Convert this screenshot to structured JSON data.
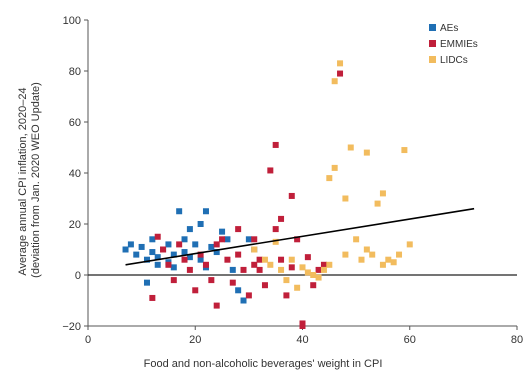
{
  "chart_data": {
    "type": "scatter",
    "title": "",
    "xlabel": "Food and non-alcoholic beverages' weight in CPI",
    "ylabel_lines": [
      "Average annual CPI inflation, 2020–24",
      "(deviation from Jan. 2020 WEO Update)"
    ],
    "xlim": [
      0,
      80
    ],
    "ylim": [
      -20,
      100
    ],
    "x_ticks": [
      0,
      20,
      40,
      60,
      80
    ],
    "y_ticks": [
      -20,
      0,
      20,
      40,
      60,
      80,
      100
    ],
    "grid": false,
    "legend_position": "top-right",
    "series": [
      {
        "name": "AEs",
        "color": "#1f6fb4",
        "points": [
          [
            7,
            10
          ],
          [
            8,
            12
          ],
          [
            9,
            8
          ],
          [
            10,
            11
          ],
          [
            11,
            6
          ],
          [
            11,
            -3
          ],
          [
            12,
            14
          ],
          [
            12,
            9
          ],
          [
            13,
            4
          ],
          [
            13,
            7
          ],
          [
            14,
            10
          ],
          [
            15,
            12
          ],
          [
            15,
            5
          ],
          [
            16,
            8
          ],
          [
            16,
            3
          ],
          [
            17,
            25
          ],
          [
            18,
            14
          ],
          [
            18,
            9
          ],
          [
            19,
            18
          ],
          [
            19,
            7
          ],
          [
            20,
            12
          ],
          [
            21,
            6
          ],
          [
            21,
            20
          ],
          [
            22,
            25
          ],
          [
            22,
            3
          ],
          [
            23,
            11
          ],
          [
            24,
            9
          ],
          [
            25,
            17
          ],
          [
            26,
            14
          ],
          [
            27,
            2
          ],
          [
            28,
            -6
          ],
          [
            29,
            -10
          ],
          [
            30,
            14
          ],
          [
            31,
            10
          ]
        ]
      },
      {
        "name": "EMMIEs",
        "color": "#c01f3a",
        "points": [
          [
            12,
            -9
          ],
          [
            13,
            15
          ],
          [
            14,
            10
          ],
          [
            15,
            4
          ],
          [
            16,
            -2
          ],
          [
            17,
            12
          ],
          [
            18,
            6
          ],
          [
            19,
            2
          ],
          [
            20,
            -6
          ],
          [
            21,
            8
          ],
          [
            22,
            4
          ],
          [
            23,
            -2
          ],
          [
            24,
            12
          ],
          [
            24,
            -12
          ],
          [
            25,
            14
          ],
          [
            26,
            6
          ],
          [
            27,
            -3
          ],
          [
            28,
            18
          ],
          [
            28,
            8
          ],
          [
            29,
            2
          ],
          [
            30,
            -8
          ],
          [
            31,
            14
          ],
          [
            31,
            4
          ],
          [
            32,
            2
          ],
          [
            33,
            -4
          ],
          [
            34,
            41
          ],
          [
            35,
            51
          ],
          [
            35,
            18
          ],
          [
            36,
            6
          ],
          [
            37,
            -8
          ],
          [
            38,
            31
          ],
          [
            38,
            3
          ],
          [
            39,
            14
          ],
          [
            40,
            -19
          ],
          [
            40,
            -20
          ],
          [
            41,
            7
          ],
          [
            42,
            -4
          ],
          [
            43,
            2
          ],
          [
            44,
            4
          ],
          [
            47,
            79
          ],
          [
            36,
            22
          ],
          [
            32,
            6
          ]
        ]
      },
      {
        "name": "LIDCs",
        "color": "#f2bc5e",
        "points": [
          [
            31,
            10
          ],
          [
            33,
            6
          ],
          [
            34,
            4
          ],
          [
            35,
            13
          ],
          [
            36,
            2
          ],
          [
            37,
            -2
          ],
          [
            38,
            6
          ],
          [
            39,
            -5
          ],
          [
            40,
            3
          ],
          [
            41,
            1
          ],
          [
            42,
            0
          ],
          [
            43,
            -1
          ],
          [
            44,
            2
          ],
          [
            45,
            4
          ],
          [
            45,
            38
          ],
          [
            46,
            42
          ],
          [
            46,
            76
          ],
          [
            47,
            83
          ],
          [
            48,
            30
          ],
          [
            48,
            8
          ],
          [
            49,
            50
          ],
          [
            50,
            14
          ],
          [
            51,
            6
          ],
          [
            52,
            10
          ],
          [
            52,
            48
          ],
          [
            53,
            8
          ],
          [
            54,
            28
          ],
          [
            55,
            32
          ],
          [
            55,
            4
          ],
          [
            56,
            6
          ],
          [
            57,
            5
          ],
          [
            58,
            8
          ],
          [
            59,
            49
          ],
          [
            60,
            12
          ]
        ]
      }
    ],
    "trend_line": {
      "color": "#000000",
      "points": [
        [
          7,
          4
        ],
        [
          72,
          26
        ]
      ]
    },
    "zero_line": {
      "y": 0,
      "color": "#222222"
    }
  }
}
